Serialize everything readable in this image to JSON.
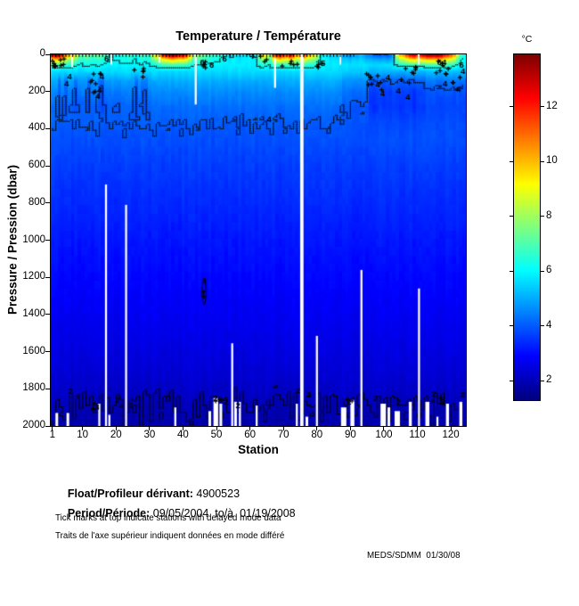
{
  "title": "Temperature / Température",
  "colorbar": {
    "unit": "°C",
    "ticks": [
      12,
      10,
      8,
      6,
      4,
      2
    ],
    "vmin": 1.3,
    "vmax": 13.9
  },
  "axes": {
    "x_label": "Station",
    "y_label": "Pressure / Pression (dbar)",
    "x_ticks": [
      1,
      10,
      20,
      30,
      40,
      50,
      60,
      70,
      80,
      90,
      100,
      110,
      120
    ],
    "y_ticks": [
      0,
      200,
      400,
      600,
      800,
      1000,
      1200,
      1400,
      1600,
      1800,
      2000
    ],
    "x_min": 1,
    "x_max": 125,
    "y_min": 0,
    "y_max": 2000
  },
  "chart_data": {
    "type": "heatmap",
    "title": "Temperature / Température",
    "xlabel": "Station",
    "ylabel": "Pressure / Pression (dbar)",
    "stations": 124,
    "colormap": "jet",
    "value_range": [
      1.3,
      13.9
    ],
    "contour_levels": [
      2,
      4,
      6
    ],
    "depth_levels": [
      0,
      26,
      55,
      90,
      140,
      200,
      280,
      360,
      460,
      600,
      800,
      1000,
      1200,
      1400,
      1600,
      1750,
      1870,
      2000
    ],
    "base_profile": [
      6.0,
      5.9,
      5.85,
      5.6,
      5.05,
      4.62,
      4.25,
      4.04,
      3.85,
      3.62,
      3.38,
      3.14,
      2.93,
      2.72,
      2.5,
      2.28,
      2.02,
      1.86
    ],
    "surface_temp_by_station": [
      13.2,
      13.8,
      13.5,
      12.6,
      11.2,
      10.0,
      10.8,
      8.8,
      7.6,
      7.2,
      7.8,
      7.4,
      7.0,
      7.3,
      7.6,
      7.1,
      6.8,
      6.2,
      6.0,
      6.3,
      6.1,
      6.6,
      6.4,
      6.8,
      6.5,
      6.2,
      6.7,
      7.0,
      6.6,
      6.9,
      8.6,
      9.8,
      10.6,
      12.4,
      13.0,
      13.6,
      13.9,
      13.4,
      12.8,
      13.2,
      12.2,
      10.4,
      8.2,
      7.6,
      7.9,
      7.4,
      7.2,
      6.9,
      6.6,
      6.8,
      6.4,
      6.2,
      5.9,
      5.7,
      6.0,
      5.8,
      5.6,
      5.9,
      5.7,
      6.0,
      5.8,
      6.1,
      8.4,
      9.6,
      9.0,
      8.0,
      11.6,
      12.6,
      13.1,
      12.4,
      11.8,
      12.9,
      12.1,
      10.6,
      11.0,
      12.2,
      10.8,
      10.2,
      9.6,
      8.6,
      6.4,
      6.0,
      5.8,
      5.5,
      5.6,
      5.4,
      5.2,
      5.0,
      4.8,
      4.6,
      4.9,
      4.7,
      5.1,
      4.8,
      4.5,
      4.3,
      4.0,
      3.9,
      3.8,
      4.0,
      3.9,
      4.1,
      5.0,
      8.8,
      10.4,
      10.9,
      11.8,
      12.8,
      13.2,
      12.4,
      12.8,
      13.3,
      13.8,
      13.9,
      13.6,
      13.9,
      13.7,
      12.6,
      12.2,
      11.6,
      10.8,
      8.6,
      6.8,
      6.2
    ],
    "cold_blob_stations": [
      3,
      5,
      8,
      12,
      15,
      16,
      26,
      28,
      29
    ],
    "cold_patch": {
      "start": 88,
      "strong_from": 96,
      "strong_to": 112,
      "end": 124
    },
    "deep_anomaly": {
      "station": 46.3,
      "p_top": 1210,
      "p_bottom": 1345,
      "label": "3"
    },
    "delayed_mode_ticks": {
      "start": 1,
      "end": 91
    },
    "missing_segments": [
      {
        "s": 17,
        "p0": 700,
        "p1": 2000,
        "w": 0.6
      },
      {
        "s": 23,
        "p0": 810,
        "p1": 2000,
        "w": 0.6
      },
      {
        "s": 75.5,
        "p0": 0,
        "p1": 2000,
        "w": 1.0
      },
      {
        "s": 54.7,
        "p0": 1555,
        "p1": 2000,
        "w": 0.6
      },
      {
        "s": 80,
        "p0": 1515,
        "p1": 2000,
        "w": 0.6
      },
      {
        "s": 93.3,
        "p0": 1160,
        "p1": 2000,
        "w": 0.6
      },
      {
        "s": 110.5,
        "p0": 1260,
        "p1": 2000,
        "w": 0.6
      },
      {
        "s": 43.8,
        "p0": 0,
        "p1": 270,
        "w": 0.6
      },
      {
        "s": 67.5,
        "p0": 20,
        "p1": 180,
        "w": 0.6
      },
      {
        "s": 6.9,
        "p0": 0,
        "p1": 70,
        "w": 0.5
      },
      {
        "s": 18.6,
        "p0": 0,
        "p1": 55,
        "w": 0.5
      },
      {
        "s": 33,
        "p0": 0,
        "p1": 45,
        "w": 0.5
      },
      {
        "s": 87,
        "p0": 0,
        "p1": 55,
        "w": 0.5
      },
      {
        "s": 110.4,
        "p0": 0,
        "p1": 55,
        "w": 0.5
      },
      {
        "s": 2.3,
        "p0": 1930,
        "p1": 2000,
        "w": 0.8
      },
      {
        "s": 5.6,
        "p0": 1930,
        "p1": 2000,
        "w": 0.8
      },
      {
        "s": 15,
        "p0": 1880,
        "p1": 2000,
        "w": 0.6
      },
      {
        "s": 18,
        "p0": 1940,
        "p1": 2000,
        "w": 0.6
      },
      {
        "s": 37.7,
        "p0": 1900,
        "p1": 2000,
        "w": 0.6
      },
      {
        "s": 48,
        "p0": 1920,
        "p1": 2000,
        "w": 0.8
      },
      {
        "s": 49.8,
        "p0": 1850,
        "p1": 2000,
        "w": 1.4
      },
      {
        "s": 51.3,
        "p0": 1880,
        "p1": 2000,
        "w": 0.8
      },
      {
        "s": 55.7,
        "p0": 1870,
        "p1": 2000,
        "w": 0.8
      },
      {
        "s": 57,
        "p0": 1870,
        "p1": 2000,
        "w": 0.6
      },
      {
        "s": 62,
        "p0": 1890,
        "p1": 2000,
        "w": 0.6
      },
      {
        "s": 74,
        "p0": 1880,
        "p1": 2000,
        "w": 0.6
      },
      {
        "s": 77,
        "p0": 1950,
        "p1": 2000,
        "w": 0.8
      },
      {
        "s": 88,
        "p0": 1900,
        "p1": 2000,
        "w": 1.6
      },
      {
        "s": 90.6,
        "p0": 1860,
        "p1": 2000,
        "w": 1.2
      },
      {
        "s": 99.8,
        "p0": 1880,
        "p1": 2000,
        "w": 1.6
      },
      {
        "s": 101.5,
        "p0": 1900,
        "p1": 2000,
        "w": 0.8
      },
      {
        "s": 104,
        "p0": 1920,
        "p1": 2000,
        "w": 1.6
      },
      {
        "s": 107.9,
        "p0": 1870,
        "p1": 2000,
        "w": 0.9
      },
      {
        "s": 113,
        "p0": 1870,
        "p1": 2000,
        "w": 1.2
      },
      {
        "s": 116,
        "p0": 1950,
        "p1": 2000,
        "w": 0.6
      },
      {
        "s": 119,
        "p0": 1880,
        "p1": 2000,
        "w": 0.9
      },
      {
        "s": 123,
        "p0": 1870,
        "p1": 2000,
        "w": 0.9
      }
    ],
    "contour_labels": [
      {
        "t": "6",
        "s": 17.2,
        "p": 14
      },
      {
        "t": "6",
        "s": 45.8,
        "p": 46
      },
      {
        "t": "6",
        "s": 48.6,
        "p": 60
      },
      {
        "t": "6",
        "s": 52.4,
        "p": 16
      },
      {
        "t": "5",
        "s": 81.8,
        "p": 50
      },
      {
        "t": "64",
        "s": 117.3,
        "p": 44
      },
      {
        "t": "6",
        "s": 123.2,
        "p": 60
      },
      {
        "t": "4",
        "s": 6.1,
        "p": 120
      },
      {
        "t": "4",
        "s": 5.2,
        "p": 158
      },
      {
        "t": "4",
        "s": 15.8,
        "p": 122
      },
      {
        "t": "4",
        "s": 15.1,
        "p": 192
      },
      {
        "t": "4",
        "s": 14.6,
        "p": 228
      },
      {
        "t": "4",
        "s": 65.7,
        "p": 352
      },
      {
        "t": "4",
        "s": 98.2,
        "p": 165
      },
      {
        "t": "4",
        "s": 99.6,
        "p": 212
      },
      {
        "t": "4",
        "s": 101.2,
        "p": 128
      },
      {
        "t": "4",
        "s": 104.3,
        "p": 198
      },
      {
        "t": "4",
        "s": 107.2,
        "p": 232
      },
      {
        "t": "4",
        "s": 118.3,
        "p": 158
      },
      {
        "t": "4",
        "s": 122.3,
        "p": 188
      },
      {
        "t": "4",
        "s": 123.6,
        "p": 92
      },
      {
        "t": "2",
        "s": 6.3,
        "p": 1815
      },
      {
        "t": "3",
        "s": 14.3,
        "p": 1900
      },
      {
        "t": "2",
        "s": 20.4,
        "p": 1862
      },
      {
        "t": "2",
        "s": 24.4,
        "p": 1890
      },
      {
        "t": "2",
        "s": 49.7,
        "p": 1852
      },
      {
        "t": "2",
        "s": 52.9,
        "p": 1872
      },
      {
        "t": "2",
        "s": 56.4,
        "p": 1890
      },
      {
        "t": "2",
        "s": 74.4,
        "p": 1808
      },
      {
        "t": "2",
        "s": 77.6,
        "p": 1835
      },
      {
        "t": "2",
        "s": 89.6,
        "p": 1872
      },
      {
        "t": "2",
        "s": 97.6,
        "p": 1852
      },
      {
        "t": "2",
        "s": 104.3,
        "p": 1872
      },
      {
        "t": "2",
        "s": 114.9,
        "p": 1828
      },
      {
        "t": "2",
        "s": 117.6,
        "p": 1872
      },
      {
        "t": "2",
        "s": 123.7,
        "p": 1833
      },
      {
        "t": "3",
        "s": 46.3,
        "p": 1218
      }
    ],
    "qc_mark_clusters": [
      {
        "s": 3,
        "p": 60,
        "n": 10,
        "ds": 4,
        "dp": 90
      },
      {
        "s": 14,
        "p": 150,
        "n": 8,
        "ds": 4,
        "dp": 120
      },
      {
        "s": 27,
        "p": 95,
        "n": 5,
        "ds": 4,
        "dp": 60
      },
      {
        "s": 46,
        "p": 60,
        "n": 4,
        "ds": 3,
        "dp": 60
      },
      {
        "s": 63,
        "p": 30,
        "n": 4,
        "ds": 5,
        "dp": 40
      },
      {
        "s": 72,
        "p": 40,
        "n": 5,
        "ds": 6,
        "dp": 50
      },
      {
        "s": 80,
        "p": 55,
        "n": 4,
        "ds": 3,
        "dp": 40
      },
      {
        "s": 97,
        "p": 140,
        "n": 9,
        "ds": 5,
        "dp": 130
      },
      {
        "s": 107,
        "p": 120,
        "n": 8,
        "ds": 6,
        "dp": 130
      },
      {
        "s": 117,
        "p": 70,
        "n": 8,
        "ds": 5,
        "dp": 90
      },
      {
        "s": 122,
        "p": 160,
        "n": 4,
        "ds": 3,
        "dp": 80
      },
      {
        "s": 46.1,
        "p": 1285,
        "n": 2,
        "ds": 0.5,
        "dp": 60
      },
      {
        "s": 14,
        "p": 1895,
        "n": 3,
        "ds": 3,
        "dp": 40
      },
      {
        "s": 50,
        "p": 1865,
        "n": 3,
        "ds": 3,
        "dp": 30
      },
      {
        "s": 90,
        "p": 1870,
        "n": 2,
        "ds": 2,
        "dp": 30
      },
      {
        "s": 116,
        "p": 1865,
        "n": 3,
        "ds": 3,
        "dp": 30
      }
    ]
  },
  "footer": {
    "float_label": "Float/Profileur dérivant:",
    "float_value": " 4900523",
    "period_label": "Period/Période:",
    "period_value": " 09/05/2004  to/à  01/19/2008",
    "note_en": "Tick marks at top indicate stations with delayed mode data",
    "note_fr": "Traits de l'axe supérieur indiquent données en mode différé",
    "credit": "MEDS/SDMM  01/30/08"
  }
}
